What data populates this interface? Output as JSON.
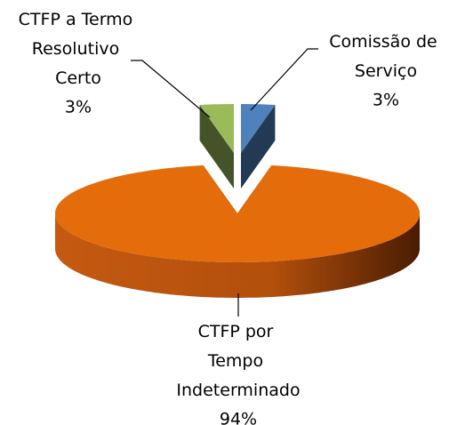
{
  "chart_data": {
    "type": "pie3d",
    "categories": [
      "CTFP a Termo Resolutivo Certo",
      "Comissão de Serviço",
      "CTFP por Tempo Indeterminado"
    ],
    "values": [
      3,
      3,
      94
    ],
    "value_labels": [
      "3%",
      "3%",
      "94%"
    ],
    "colors": [
      "#9bbb59",
      "#4f81bd",
      "#e46c0a"
    ]
  }
}
